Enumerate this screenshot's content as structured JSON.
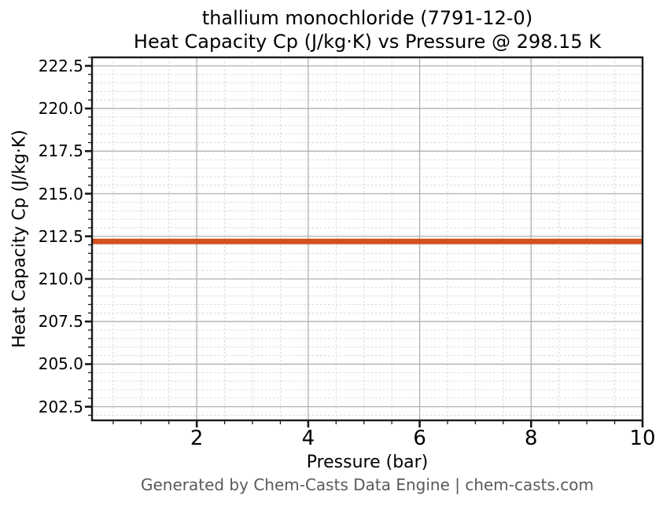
{
  "chart_data": {
    "type": "line",
    "title_lines": [
      "thallium monochloride (7791-12-0)",
      "Heat Capacity Cp (J/kg·K) vs Pressure @ 298.15 K"
    ],
    "xlabel": "Pressure (bar)",
    "ylabel": "Heat Capacity Cp (J/kg·K)",
    "xlim": [
      0.12,
      10
    ],
    "ylim": [
      201.7,
      223.0
    ],
    "xticks": [
      2,
      4,
      6,
      8,
      10
    ],
    "xtick_labels": [
      "2",
      "4",
      "6",
      "8",
      "10"
    ],
    "yticks": [
      222.5,
      220.0,
      217.5,
      215.0,
      212.5,
      210.0,
      207.5,
      205.0,
      202.5
    ],
    "ytick_labels": [
      "222.5",
      "220.0",
      "217.5",
      "215.0",
      "212.5",
      "210.0",
      "207.5",
      "205.0",
      "202.5"
    ],
    "minor_tick_step_x": 0.5,
    "minor_tick_step_y": 0.5,
    "grid": {
      "major": true,
      "minor": true
    },
    "legend": "none",
    "series": [
      {
        "name": "Heat Capacity Cp",
        "x": [
          0.12,
          10
        ],
        "y": [
          212.2,
          212.2
        ],
        "color": "#d2511e",
        "linewidth": 7
      }
    ]
  },
  "footer": {
    "text": "Generated by Chem-Casts Data Engine | chem-casts.com"
  },
  "colors": {
    "background": "#ffffff",
    "spine": "#1a1a1a",
    "major_grid": "#b0b0b0",
    "minor_grid": "#d8d8d8",
    "series_line": "#d2511e",
    "footer_text": "#595959"
  }
}
